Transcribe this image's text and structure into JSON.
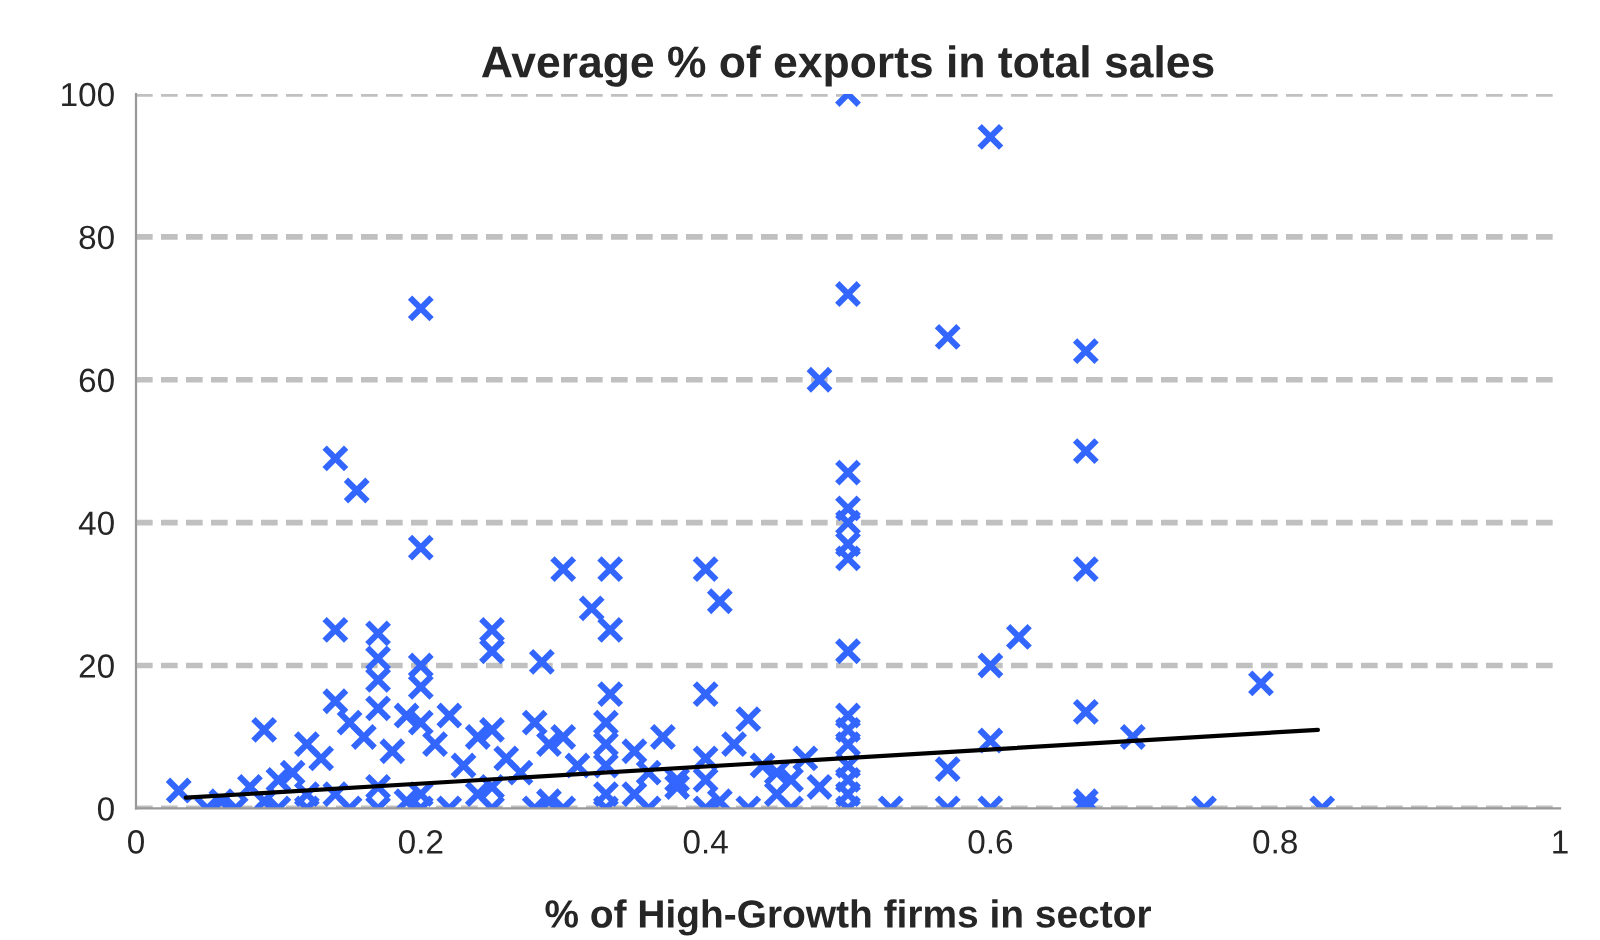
{
  "chart_data": {
    "type": "scatter",
    "title": "Average % of exports in total sales",
    "xlabel": "% of High-Growth firms in sector",
    "xlim": [
      0,
      1
    ],
    "xticks": [
      0,
      0.2,
      0.4,
      0.6,
      0.8,
      1
    ],
    "ylim": [
      0,
      100
    ],
    "yticks": [
      0,
      20,
      40,
      60,
      80,
      100
    ],
    "grid": "y",
    "series": [
      {
        "marker": "cross",
        "color": "#3366ff",
        "x": [
          0.5,
          0.6,
          0.2,
          0.5,
          0.57,
          0.667,
          0.48,
          0.14,
          0.155,
          0.5,
          0.5,
          0.5,
          0.5,
          0.5,
          0.2,
          0.667,
          0.667,
          0.3,
          0.333,
          0.4,
          0.41,
          0.32,
          0.333,
          0.14,
          0.17,
          0.25,
          0.25,
          0.62,
          0.6,
          0.5,
          0.2,
          0.285,
          0.4,
          0.333,
          0.79,
          0.5,
          0.5,
          0.5,
          0.43,
          0.57,
          0.6,
          0.667,
          0.7,
          0.833,
          0.75,
          0.6,
          0.667,
          0.53,
          0.57,
          0.667,
          0.03,
          0.06,
          0.08,
          0.09,
          0.1,
          0.11,
          0.12,
          0.13,
          0.14,
          0.15,
          0.16,
          0.17,
          0.17,
          0.17,
          0.18,
          0.19,
          0.2,
          0.2,
          0.21,
          0.22,
          0.23,
          0.24,
          0.25,
          0.26,
          0.27,
          0.28,
          0.29,
          0.3,
          0.31,
          0.33,
          0.33,
          0.33,
          0.35,
          0.36,
          0.37,
          0.38,
          0.4,
          0.4,
          0.42,
          0.44,
          0.45,
          0.46,
          0.47,
          0.48,
          0.5,
          0.5,
          0.5,
          0.07,
          0.1,
          0.12,
          0.15,
          0.17,
          0.2,
          0.22,
          0.25,
          0.28,
          0.3,
          0.33,
          0.36,
          0.4,
          0.43,
          0.46,
          0.5,
          0.12,
          0.17,
          0.2,
          0.25,
          0.33,
          0.38,
          0.45,
          0.05,
          0.09,
          0.14,
          0.19,
          0.24,
          0.29,
          0.35,
          0.41
        ],
        "values": [
          100,
          94,
          70,
          72,
          66,
          64,
          60,
          49,
          44.5,
          47,
          42,
          40,
          37,
          35,
          36.5,
          50,
          33.5,
          33.5,
          33.5,
          33.5,
          29,
          28,
          25,
          25,
          24.5,
          25,
          22,
          24,
          20,
          22,
          20,
          20.5,
          16,
          16,
          17.5,
          13,
          11,
          9,
          12.5,
          5.5,
          9.5,
          13.5,
          10,
          0,
          0,
          0,
          0,
          0,
          0,
          1,
          2.5,
          1,
          3,
          11,
          4,
          5,
          9,
          7,
          15,
          12,
          10,
          21,
          18,
          14,
          8,
          13,
          17,
          12,
          9,
          13,
          6,
          10,
          11,
          7,
          5,
          12,
          9,
          10,
          6,
          12,
          9,
          6,
          8,
          5,
          10,
          4,
          7,
          4,
          9,
          6,
          5,
          4,
          7,
          3,
          6,
          4,
          2,
          0,
          0,
          0,
          0,
          0,
          0,
          0,
          0,
          0,
          0,
          0,
          0,
          0,
          0,
          0,
          0,
          2,
          3,
          2,
          3,
          2,
          3,
          2,
          0,
          1,
          2,
          1,
          2,
          1,
          2,
          1
        ]
      },
      {
        "type": "line",
        "marker": "none",
        "color": "#000000",
        "x": [
          0.035,
          0.83
        ],
        "values": [
          1.5,
          11
        ]
      }
    ]
  }
}
